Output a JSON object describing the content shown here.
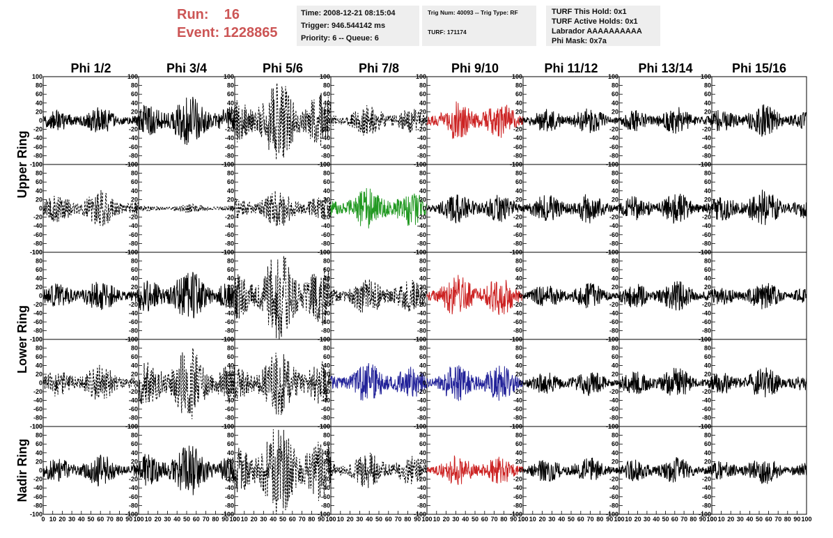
{
  "header": {
    "run_label": "Run:",
    "run_value": "16",
    "event_label": "Event:",
    "event_value": "1228865",
    "run_color": "#cc5555"
  },
  "info_box_1": {
    "time": "Time: 2008-12-21 08:15:04",
    "trigger": "Trigger: 946.544142 ms",
    "priority": "Priority: 6 -- Queue: 6"
  },
  "info_box_2": {
    "trig": "Trig Num: 40093 -- Trig Type: RF",
    "turf": "TURF: 171174"
  },
  "info_box_3": {
    "hold": "TURF This Hold: 0x1",
    "active": "TURF Active Holds: 0x1",
    "labrador": "Labrador AAAAAAAAAA",
    "phimask": "Phi Mask: 0x7a"
  },
  "chart_data": {
    "type": "line",
    "columns": [
      "Phi 1/2",
      "Phi 3/4",
      "Phi 5/6",
      "Phi 7/8",
      "Phi 9/10",
      "Phi 11/12",
      "Phi 13/14",
      "Phi 15/16"
    ],
    "ring_labels": [
      "Upper Ring",
      "Lower Ring",
      "Nadir Ring"
    ],
    "x_ticks": [
      0,
      10,
      20,
      30,
      40,
      50,
      60,
      70,
      80,
      90,
      100
    ],
    "y_ticks": [
      -100,
      -80,
      -60,
      -40,
      -20,
      0,
      20,
      40,
      60,
      80,
      100
    ],
    "xlim": [
      0,
      100
    ],
    "ylim": [
      -100,
      100
    ],
    "grid": false,
    "colors": {
      "default": "#000000",
      "red": "#cc2222",
      "green": "#229922",
      "blue": "#222299"
    },
    "panels": [
      [
        {
          "style": "solid",
          "color": "default",
          "amp": 12
        },
        {
          "style": "solid",
          "color": "default",
          "amp": 22
        },
        {
          "style": "dashed",
          "color": "default",
          "amp": 35
        },
        {
          "style": "dashed",
          "color": "default",
          "amp": 14
        },
        {
          "style": "solid",
          "color": "red",
          "amp": 18
        },
        {
          "style": "solid",
          "color": "default",
          "amp": 12
        },
        {
          "style": "solid",
          "color": "default",
          "amp": 12
        },
        {
          "style": "solid",
          "color": "default",
          "amp": 14
        }
      ],
      [
        {
          "style": "dashed",
          "color": "default",
          "amp": 16
        },
        {
          "style": "dashed",
          "color": "default",
          "amp": 4
        },
        {
          "style": "dashed",
          "color": "default",
          "amp": 16
        },
        {
          "style": "solid",
          "color": "green",
          "amp": 20
        },
        {
          "style": "solid",
          "color": "default",
          "amp": 14
        },
        {
          "style": "solid",
          "color": "default",
          "amp": 14
        },
        {
          "style": "solid",
          "color": "default",
          "amp": 14
        },
        {
          "style": "solid",
          "color": "default",
          "amp": 16
        }
      ],
      [
        {
          "style": "solid",
          "color": "default",
          "amp": 14
        },
        {
          "style": "solid",
          "color": "default",
          "amp": 22
        },
        {
          "style": "dashed",
          "color": "default",
          "amp": 38
        },
        {
          "style": "dashed",
          "color": "default",
          "amp": 18
        },
        {
          "style": "solid",
          "color": "red",
          "amp": 20
        },
        {
          "style": "solid",
          "color": "default",
          "amp": 12
        },
        {
          "style": "solid",
          "color": "default",
          "amp": 14
        },
        {
          "style": "solid",
          "color": "default",
          "amp": 12
        }
      ],
      [
        {
          "style": "dashed",
          "color": "default",
          "amp": 16
        },
        {
          "style": "dashed",
          "color": "default",
          "amp": 32
        },
        {
          "style": "dashed",
          "color": "default",
          "amp": 28
        },
        {
          "style": "solid",
          "color": "blue",
          "amp": 18
        },
        {
          "style": "solid",
          "color": "blue",
          "amp": 18
        },
        {
          "style": "solid",
          "color": "default",
          "amp": 12
        },
        {
          "style": "solid",
          "color": "default",
          "amp": 14
        },
        {
          "style": "solid",
          "color": "default",
          "amp": 14
        }
      ],
      [
        {
          "style": "solid",
          "color": "default",
          "amp": 14
        },
        {
          "style": "solid",
          "color": "default",
          "amp": 22
        },
        {
          "style": "dashed",
          "color": "default",
          "amp": 40
        },
        {
          "style": "dashed",
          "color": "default",
          "amp": 16
        },
        {
          "style": "solid",
          "color": "red",
          "amp": 14
        },
        {
          "style": "solid",
          "color": "default",
          "amp": 12
        },
        {
          "style": "solid",
          "color": "default",
          "amp": 12
        },
        {
          "style": "solid",
          "color": "default",
          "amp": 12
        }
      ]
    ]
  }
}
